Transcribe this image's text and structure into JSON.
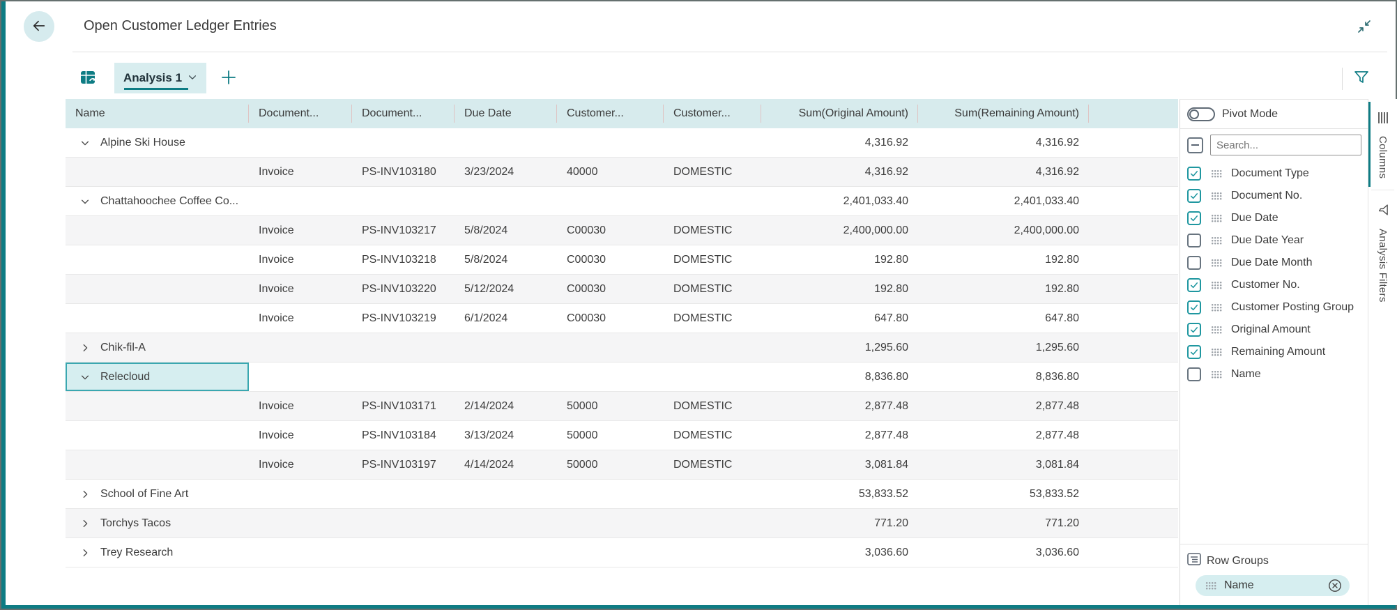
{
  "header": {
    "title": "Open Customer Ledger Entries"
  },
  "toolbar": {
    "active_tab": "Analysis 1",
    "add_tab": "+"
  },
  "colors": {
    "accent": "#0e7c84",
    "accent_bright": "#1f97a0",
    "tab_bg": "#d8edef",
    "grid_header_bg": "#d7ebed",
    "selection_bg": "#d6eef0",
    "selection_border": "#3aa7b0"
  },
  "grid": {
    "columns": [
      {
        "label": "Name",
        "align": "left"
      },
      {
        "label": "Document...",
        "align": "left"
      },
      {
        "label": "Document...",
        "align": "left"
      },
      {
        "label": "Due Date",
        "align": "left"
      },
      {
        "label": "Customer...",
        "align": "left"
      },
      {
        "label": "Customer...",
        "align": "left"
      },
      {
        "label": "Sum(Original Amount)",
        "align": "right"
      },
      {
        "label": "Sum(Remaining Amount)",
        "align": "right"
      }
    ],
    "rows": [
      {
        "type": "group",
        "name": "Alpine Ski House",
        "expanded": true,
        "selected": false,
        "original_amount": "4,316.92",
        "remaining_amount": "4,316.92"
      },
      {
        "type": "detail",
        "document_type": "Invoice",
        "document_no": "PS-INV103180",
        "due_date": "3/23/2024",
        "customer_no": "40000",
        "customer_posting_group": "DOMESTIC",
        "original_amount": "4,316.92",
        "remaining_amount": "4,316.92"
      },
      {
        "type": "group",
        "name": "Chattahoochee Coffee Co...",
        "expanded": true,
        "selected": false,
        "original_amount": "2,401,033.40",
        "remaining_amount": "2,401,033.40"
      },
      {
        "type": "detail",
        "document_type": "Invoice",
        "document_no": "PS-INV103217",
        "due_date": "5/8/2024",
        "customer_no": "C00030",
        "customer_posting_group": "DOMESTIC",
        "original_amount": "2,400,000.00",
        "remaining_amount": "2,400,000.00"
      },
      {
        "type": "detail",
        "document_type": "Invoice",
        "document_no": "PS-INV103218",
        "due_date": "5/8/2024",
        "customer_no": "C00030",
        "customer_posting_group": "DOMESTIC",
        "original_amount": "192.80",
        "remaining_amount": "192.80"
      },
      {
        "type": "detail",
        "document_type": "Invoice",
        "document_no": "PS-INV103220",
        "due_date": "5/12/2024",
        "customer_no": "C00030",
        "customer_posting_group": "DOMESTIC",
        "original_amount": "192.80",
        "remaining_amount": "192.80"
      },
      {
        "type": "detail",
        "document_type": "Invoice",
        "document_no": "PS-INV103219",
        "due_date": "6/1/2024",
        "customer_no": "C00030",
        "customer_posting_group": "DOMESTIC",
        "original_amount": "647.80",
        "remaining_amount": "647.80"
      },
      {
        "type": "group",
        "name": "Chik-fil-A",
        "expanded": false,
        "selected": false,
        "original_amount": "1,295.60",
        "remaining_amount": "1,295.60"
      },
      {
        "type": "group",
        "name": "Relecloud",
        "expanded": true,
        "selected": true,
        "original_amount": "8,836.80",
        "remaining_amount": "8,836.80"
      },
      {
        "type": "detail",
        "document_type": "Invoice",
        "document_no": "PS-INV103171",
        "due_date": "2/14/2024",
        "customer_no": "50000",
        "customer_posting_group": "DOMESTIC",
        "original_amount": "2,877.48",
        "remaining_amount": "2,877.48"
      },
      {
        "type": "detail",
        "document_type": "Invoice",
        "document_no": "PS-INV103184",
        "due_date": "3/13/2024",
        "customer_no": "50000",
        "customer_posting_group": "DOMESTIC",
        "original_amount": "2,877.48",
        "remaining_amount": "2,877.48"
      },
      {
        "type": "detail",
        "document_type": "Invoice",
        "document_no": "PS-INV103197",
        "due_date": "4/14/2024",
        "customer_no": "50000",
        "customer_posting_group": "DOMESTIC",
        "original_amount": "3,081.84",
        "remaining_amount": "3,081.84"
      },
      {
        "type": "group",
        "name": "School of Fine Art",
        "expanded": false,
        "selected": false,
        "original_amount": "53,833.52",
        "remaining_amount": "53,833.52"
      },
      {
        "type": "group",
        "name": "Torchys Tacos",
        "expanded": false,
        "selected": false,
        "original_amount": "771.20",
        "remaining_amount": "771.20"
      },
      {
        "type": "group",
        "name": "Trey Research",
        "expanded": false,
        "selected": false,
        "original_amount": "3,036.60",
        "remaining_amount": "3,036.60"
      }
    ]
  },
  "sidebar": {
    "pivot_mode_label": "Pivot Mode",
    "pivot_mode_on": false,
    "search_placeholder": "Search...",
    "fields": [
      {
        "label": "Document Type",
        "checked": true
      },
      {
        "label": "Document No.",
        "checked": true
      },
      {
        "label": "Due Date",
        "checked": true
      },
      {
        "label": "Due Date Year",
        "checked": false
      },
      {
        "label": "Due Date Month",
        "checked": false
      },
      {
        "label": "Customer No.",
        "checked": true
      },
      {
        "label": "Customer Posting Group",
        "checked": true
      },
      {
        "label": "Original Amount",
        "checked": true
      },
      {
        "label": "Remaining Amount",
        "checked": true
      },
      {
        "label": "Name",
        "checked": false
      }
    ],
    "row_groups": {
      "title": "Row Groups",
      "items": [
        {
          "label": "Name"
        }
      ]
    }
  },
  "right_rail": {
    "tabs": [
      {
        "label": "Columns",
        "active": true
      },
      {
        "label": "Analysis Filters",
        "active": false
      }
    ]
  }
}
